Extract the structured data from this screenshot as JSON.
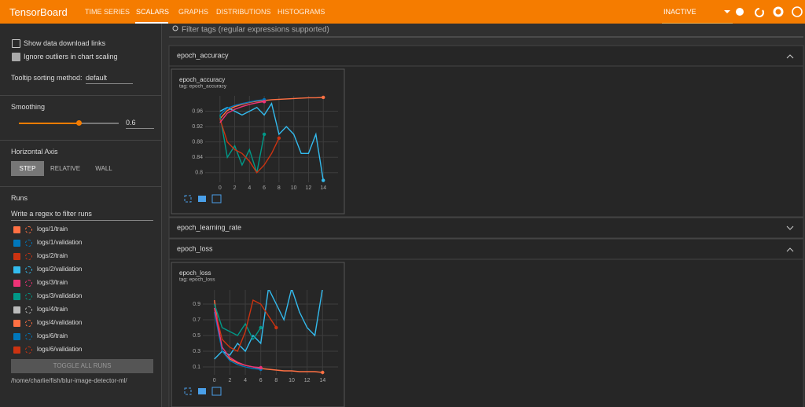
{
  "header": {
    "title": "TensorBoard",
    "tabs": [
      "TIME SERIES",
      "SCALARS",
      "GRAPHS",
      "DISTRIBUTIONS",
      "HISTOGRAMS"
    ],
    "status": "INACTIVE"
  },
  "sidebar": {
    "show_download": "Show data download links",
    "ignore_outliers": "Ignore outliers in chart scaling",
    "tooltip_label": "Tooltip sorting method:",
    "tooltip_value": "default",
    "smoothing_label": "Smoothing",
    "smoothing_value": 0.6,
    "haxis_label": "Horizontal Axis",
    "haxis_options": [
      "STEP",
      "RELATIVE",
      "WALL"
    ],
    "runs_label": "Runs",
    "runs_filter": "Write a regex to filter runs",
    "runs": [
      {
        "name": "logs/1/train",
        "color": "#ff7043"
      },
      {
        "name": "logs/1/validation",
        "color": "#0077bb"
      },
      {
        "name": "logs/2/train",
        "color": "#cc3311"
      },
      {
        "name": "logs/2/validation",
        "color": "#33bbee"
      },
      {
        "name": "logs/3/train",
        "color": "#ee3377"
      },
      {
        "name": "logs/3/validation",
        "color": "#009988"
      },
      {
        "name": "logs/4/train",
        "color": "#bbbbbb"
      },
      {
        "name": "logs/4/validation",
        "color": "#ff7043"
      },
      {
        "name": "logs/6/train",
        "color": "#0077bb"
      },
      {
        "name": "logs/6/validation",
        "color": "#cc3311"
      }
    ],
    "toggle": "TOGGLE ALL RUNS",
    "path": "/home/charlie/fish/blur-image-detector-ml/"
  },
  "search_placeholder": "Filter tags (regular expressions supported)",
  "sections": [
    "epoch_accuracy",
    "epoch_learning_rate",
    "epoch_loss"
  ],
  "charts": [
    {
      "type": "line",
      "title": "epoch_accuracy",
      "subtitle": "tag: epoch_accuracy",
      "x": [
        0,
        1,
        2,
        3,
        4,
        5,
        6,
        7,
        8,
        9,
        10,
        11,
        12,
        13,
        14
      ],
      "xlim": [
        -2,
        16
      ],
      "xticks": [
        0,
        2,
        4,
        6,
        8,
        10,
        12,
        14
      ],
      "ylim": [
        0.775,
        1.0
      ],
      "yticks": [
        0.96,
        0.92,
        0.88,
        0.84,
        0.8
      ],
      "series": [
        {
          "color": "#ff7043",
          "values": [
            0.94,
            0.962,
            0.972,
            0.978,
            0.983,
            0.986,
            0.988,
            0.99,
            0.991,
            0.992,
            0.993,
            0.994,
            0.995,
            0.995,
            0.996
          ]
        },
        {
          "color": "#009988",
          "values": [
            0.95,
            0.84,
            0.87,
            0.82,
            0.86,
            0.8,
            0.9,
            null,
            null,
            null,
            null,
            null,
            null,
            null,
            null
          ]
        },
        {
          "color": "#33bbee",
          "values": [
            0.96,
            0.97,
            0.96,
            0.95,
            0.96,
            0.97,
            0.95,
            0.98,
            0.9,
            0.92,
            0.9,
            0.85,
            0.85,
            0.9,
            0.78
          ]
        },
        {
          "color": "#cc3311",
          "values": [
            0.94,
            0.88,
            0.86,
            0.85,
            0.83,
            0.8,
            0.82,
            0.85,
            0.89,
            null,
            null,
            null,
            null,
            null,
            null
          ]
        },
        {
          "color": "#0077bb",
          "values": [
            0.95,
            0.968,
            0.975,
            0.98,
            0.984,
            0.988,
            0.99,
            null,
            null,
            null,
            null,
            null,
            null,
            null,
            null
          ]
        },
        {
          "color": "#ee3377",
          "values": [
            0.93,
            0.955,
            0.965,
            0.972,
            0.978,
            0.982,
            0.985,
            null,
            null,
            null,
            null,
            null,
            null,
            null,
            null
          ]
        }
      ]
    },
    {
      "type": "line",
      "title": "epoch_loss",
      "subtitle": "tag: epoch_loss",
      "x": [
        0,
        1,
        2,
        3,
        4,
        5,
        6,
        7,
        8,
        9,
        10,
        11,
        12,
        13,
        14
      ],
      "xlim": [
        -1.5,
        16
      ],
      "xticks": [
        0,
        2,
        4,
        6,
        8,
        10,
        12,
        14
      ],
      "ylim": [
        0.0,
        1.08
      ],
      "yticks": [
        0.9,
        0.7,
        0.5,
        0.3,
        0.1
      ],
      "series": [
        {
          "color": "#ff7043",
          "values": [
            0.95,
            0.3,
            0.2,
            0.15,
            0.12,
            0.1,
            0.08,
            0.07,
            0.06,
            0.05,
            0.05,
            0.04,
            0.04,
            0.04,
            0.03
          ]
        },
        {
          "color": "#33bbee",
          "values": [
            0.2,
            0.3,
            0.25,
            0.4,
            0.3,
            0.5,
            0.4,
            1.1,
            0.9,
            0.7,
            1.1,
            0.8,
            0.6,
            0.5,
            1.1
          ]
        },
        {
          "color": "#009988",
          "values": [
            0.9,
            0.6,
            0.55,
            0.5,
            0.65,
            0.45,
            0.6,
            null,
            null,
            null,
            null,
            null,
            null,
            null,
            null
          ]
        },
        {
          "color": "#cc3311",
          "values": [
            0.85,
            0.45,
            0.35,
            0.3,
            0.55,
            0.95,
            0.9,
            0.75,
            0.6,
            null,
            null,
            null,
            null,
            null,
            null
          ]
        },
        {
          "color": "#0077bb",
          "values": [
            0.8,
            0.3,
            0.18,
            0.13,
            0.1,
            0.08,
            0.07,
            null,
            null,
            null,
            null,
            null,
            null,
            null,
            null
          ]
        },
        {
          "color": "#ee3377",
          "values": [
            0.85,
            0.35,
            0.22,
            0.16,
            0.12,
            0.1,
            0.09,
            null,
            null,
            null,
            null,
            null,
            null,
            null,
            null
          ]
        }
      ]
    }
  ]
}
